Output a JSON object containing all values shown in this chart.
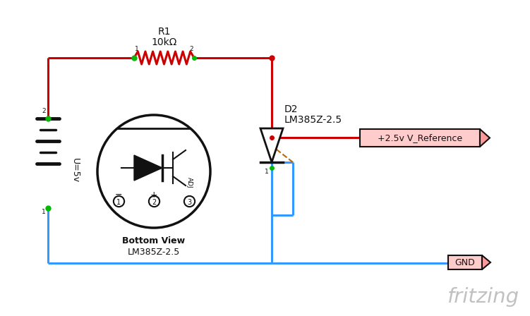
{
  "bg_color": "#ffffff",
  "red_color": "#cc0000",
  "blue_color": "#3399ff",
  "green_color": "#00bb00",
  "dark_color": "#111111",
  "orange_color": "#bb6600",
  "gray_color": "#bbbbbb",
  "pink_fill": "#ffcccc",
  "pink_dark": "#ff9999",
  "r1_label": "R1",
  "r1_val": "10kΩ",
  "d2_label": "D2",
  "d2_val": "LM385Z-2.5",
  "vref_label": "+2.5v V_Reference",
  "gnd_label": "GND",
  "battery_label": "U=5v",
  "bottom_view": "Bottom View",
  "bottom_view2": "LM385Z-2.5",
  "fritzing_label": "fritzing",
  "wire_lw": 2.2,
  "fig_w": 7.51,
  "fig_h": 4.48,
  "dpi": 100
}
